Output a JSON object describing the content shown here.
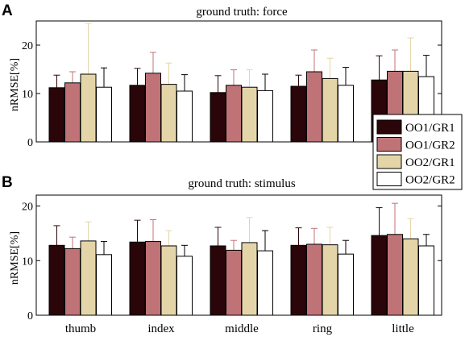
{
  "colors": {
    "OO1/GR1": "#2a0509",
    "OO1/GR2": "#c07377",
    "OO2/GR1": "#e4d5a8",
    "OO2/GR2": "#ffffff"
  },
  "chart_data": [
    {
      "panel_label": "A",
      "type": "bar",
      "title": "ground truth: force",
      "ylabel": "nRMSE[%]",
      "xlabel": "",
      "ylim": [
        0,
        25
      ],
      "yticks": [
        0,
        10,
        20
      ],
      "grid": false,
      "legend": "right",
      "categories": [
        "thumb",
        "index",
        "middle",
        "ring",
        "little"
      ],
      "series": [
        {
          "name": "OO1/GR1",
          "values": [
            11.2,
            11.7,
            10.2,
            11.5,
            12.8
          ],
          "errors": [
            2.6,
            3.5,
            3.5,
            2.3,
            5.0
          ]
        },
        {
          "name": "OO1/GR2",
          "values": [
            12.2,
            14.2,
            11.7,
            14.5,
            14.6
          ],
          "errors": [
            2.3,
            4.3,
            3.2,
            4.5,
            4.4
          ]
        },
        {
          "name": "OO2/GR1",
          "values": [
            14.0,
            11.9,
            11.3,
            13.1,
            14.6
          ],
          "errors": [
            10.5,
            4.4,
            3.6,
            4.2,
            6.9
          ]
        },
        {
          "name": "OO2/GR2",
          "values": [
            11.3,
            10.5,
            10.6,
            11.7,
            13.5
          ],
          "errors": [
            4.0,
            3.4,
            3.4,
            3.7,
            4.4
          ]
        }
      ]
    },
    {
      "panel_label": "B",
      "type": "bar",
      "title": "ground truth: stimulus",
      "ylabel": "nRMSE[%]",
      "xlabel": "",
      "ylim": [
        0,
        22
      ],
      "yticks": [
        0,
        10,
        20
      ],
      "grid": false,
      "legend": "",
      "categories": [
        "thumb",
        "index",
        "middle",
        "ring",
        "little"
      ],
      "series": [
        {
          "name": "OO1/GR1",
          "values": [
            12.8,
            13.4,
            12.7,
            12.8,
            14.6
          ],
          "errors": [
            3.6,
            4.0,
            3.4,
            3.2,
            5.1
          ]
        },
        {
          "name": "OO1/GR2",
          "values": [
            12.2,
            13.5,
            11.9,
            13.0,
            14.8
          ],
          "errors": [
            2.1,
            4.0,
            1.8,
            2.9,
            5.7
          ]
        },
        {
          "name": "OO2/GR1",
          "values": [
            13.6,
            12.7,
            13.3,
            12.9,
            14.0
          ],
          "errors": [
            3.5,
            2.8,
            4.6,
            3.2,
            3.7
          ]
        },
        {
          "name": "OO2/GR2",
          "values": [
            11.1,
            10.8,
            11.8,
            11.2,
            12.7
          ],
          "errors": [
            2.4,
            2.0,
            3.7,
            2.5,
            2.1
          ]
        }
      ]
    }
  ]
}
